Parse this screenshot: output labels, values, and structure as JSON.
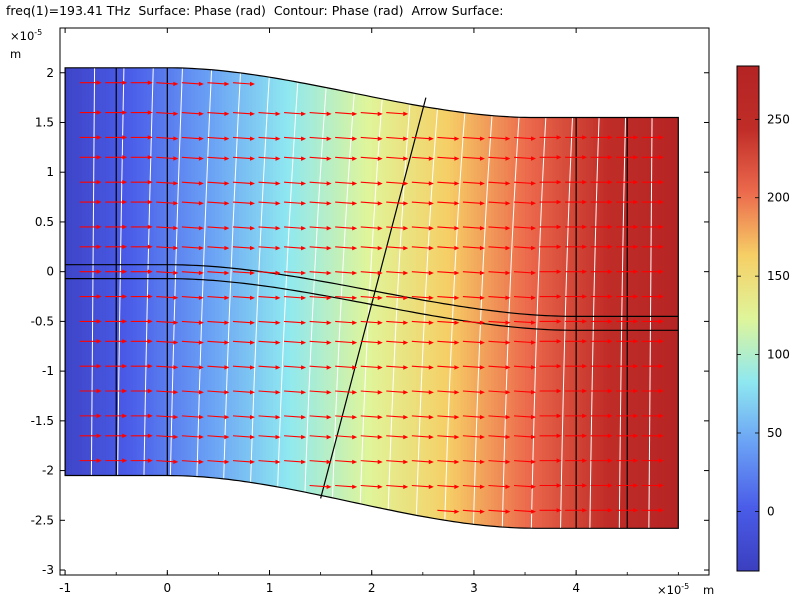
{
  "title_line": "freq(1)=193.41 THz  Surface: Phase (rad)  Contour: Phase (rad)  Arrow Surface:",
  "chart_data": {
    "type": "heatmap",
    "title": "freq(1)=193.41 THz  Surface: Phase (rad)  Contour: Phase (rad)  Arrow Surface:",
    "xlim": [
      -1.05,
      5.3
    ],
    "ylim": [
      -3.05,
      2.45
    ],
    "x_ticks": [
      -1,
      0,
      1,
      2,
      3,
      4
    ],
    "x_tick_labels": [
      "-1",
      "0",
      "1",
      "2",
      "3",
      "4"
    ],
    "y_ticks": [
      2,
      1.5,
      1,
      0.5,
      0,
      -0.5,
      -1,
      -1.5,
      -2,
      -2.5,
      -3
    ],
    "y_tick_labels": [
      "2",
      "1.5",
      "1",
      "0.5",
      "0",
      "-0.5",
      "-1",
      "-1.5",
      "-2",
      "-2.5",
      "-3"
    ],
    "x_exponent": "×10",
    "x_exponent_power": "-5",
    "x_unit": "m",
    "y_exponent": "×10",
    "y_exponent_power": "-5",
    "y_unit": "m",
    "grid": false,
    "colormap": "rainbow",
    "colorbar": {
      "range": [
        -38,
        284
      ],
      "ticks": [
        0,
        50,
        100,
        150,
        200,
        250
      ],
      "tick_labels": [
        "0",
        "50",
        "100",
        "150",
        "200",
        "250"
      ],
      "stops": [
        "#3b3fbf",
        "#4a5ce8",
        "#6aa0f5",
        "#8fe8f0",
        "#dff59a",
        "#f6cf66",
        "#ec6a4d",
        "#c02d28",
        "#b42424"
      ]
    },
    "domain": {
      "x_start": -1,
      "x_end": 5,
      "left_half_height": 2.05,
      "right_top": 1.55,
      "right_bottom": -2.58,
      "taper_start_x": 0,
      "taper_end_x": 3.6
    },
    "core": {
      "left_top": 0.07,
      "left_bottom": -0.07,
      "right_top": -0.45,
      "right_bottom": -0.59
    },
    "phase_range": [
      -30,
      280
    ],
    "interior_vertical_lines": [
      -0.5,
      0,
      4,
      4.5
    ],
    "slanted_line": {
      "from": [
        1.5,
        -2.28
      ],
      "to": [
        2.53,
        1.75
      ]
    },
    "contour_count": 22,
    "arrow_columns": [
      -0.75,
      -0.5,
      -0.25,
      0,
      0.25,
      0.5,
      0.75,
      1,
      1.25,
      1.5,
      1.75,
      2,
      2.25,
      2.5,
      2.75,
      3,
      3.25,
      3.5,
      3.75,
      4,
      4.25,
      4.5,
      4.75
    ],
    "arrow_rows": [
      1.9,
      1.6,
      1.35,
      1.15,
      0.9,
      0.7,
      0.45,
      0.25,
      0.0,
      -0.25,
      -0.5,
      -0.7,
      -0.95,
      -1.2,
      -1.45,
      -1.65,
      -1.9,
      -2.15,
      -2.4
    ],
    "colors": {
      "arrow": "#ff0000",
      "contour": "#ffffff",
      "boundary": "#000000"
    }
  }
}
